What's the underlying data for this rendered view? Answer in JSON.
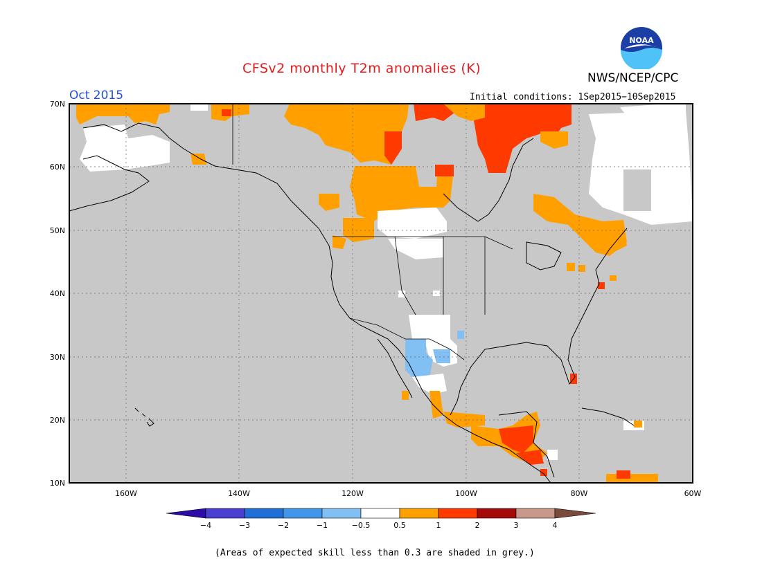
{
  "header": {
    "title": "CFSv2 monthly T2m anomalies (K)",
    "month": "Oct 2015",
    "initial_conditions": "Initial conditions: 1Sep2015−10Sep2015",
    "agency": "NWS/NCEP/CPC",
    "logo_text": "NOAA"
  },
  "map": {
    "lat_labels": [
      "70N",
      "60N",
      "50N",
      "40N",
      "30N",
      "20N",
      "10N"
    ],
    "lon_labels": [
      "160W",
      "140W",
      "120W",
      "100W",
      "80W",
      "60W"
    ],
    "lat_range": [
      10,
      70
    ],
    "lon_range": [
      -170,
      -60
    ],
    "land_default_color": "#c8c8c8",
    "ocean_color": "#c8c8c8",
    "grid": "dotted"
  },
  "colorbar": {
    "labels": [
      "−4",
      "−3",
      "−2",
      "−1",
      "−0.5",
      "0.5",
      "1",
      "2",
      "3",
      "4"
    ],
    "colors": [
      "#2b0ca8",
      "#4a3fd0",
      "#1f6fd6",
      "#3f96ea",
      "#82bff2",
      "#ffffff",
      "#ffa000",
      "#ff3a00",
      "#a50a0a",
      "#c8998a",
      "#7a4a3a"
    ]
  },
  "footnote": "(Areas of expected skill less than 0.3 are shaded in grey.)"
}
